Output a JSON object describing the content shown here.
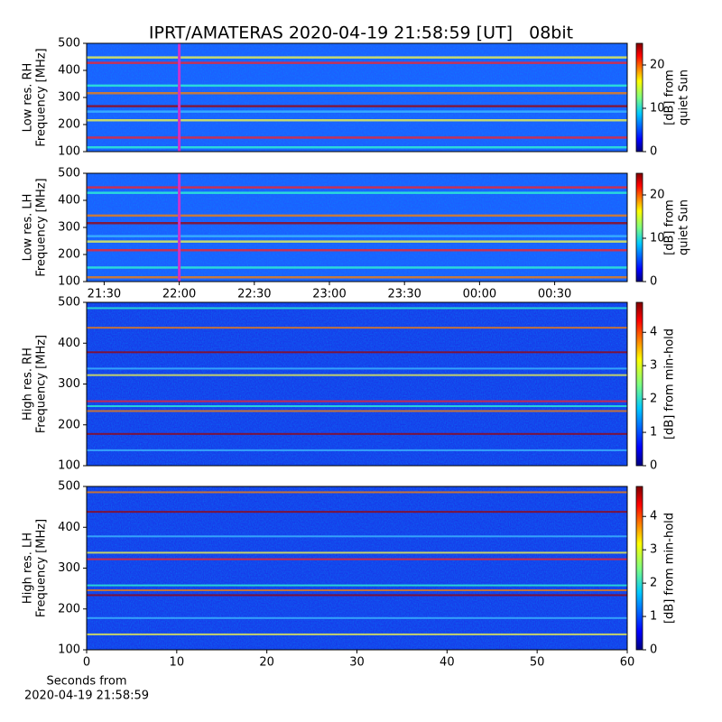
{
  "title": "IPRT/AMATERAS 2020-04-19 21:58:59 [UT]   08bit",
  "chart_data": [
    {
      "type": "heatmap",
      "ylabel": [
        "Low res. RH",
        "Frequency [MHz]"
      ],
      "ylim": [
        100,
        500
      ],
      "yticks": [
        100,
        200,
        300,
        400,
        500
      ],
      "xlim": [
        1283,
        1499
      ],
      "marker_x": 1320,
      "marker_color": "#cc33cc",
      "colorbar": {
        "label": [
          "[dB] from",
          "quiet Sun"
        ],
        "clim": [
          0,
          25
        ],
        "ticks": [
          0,
          10,
          20
        ]
      }
    },
    {
      "type": "heatmap",
      "ylabel": [
        "Low res. LH",
        "Frequency [MHz]"
      ],
      "ylim": [
        100,
        500
      ],
      "yticks": [
        100,
        200,
        300,
        400,
        500
      ],
      "xlim": [
        1283,
        1499
      ],
      "marker_x": 1320,
      "marker_color": "#cc33cc",
      "xticks": [
        {
          "value": 1290,
          "label": "21:30"
        },
        {
          "value": 1320,
          "label": "22:00"
        },
        {
          "value": 1350,
          "label": "22:30"
        },
        {
          "value": 1380,
          "label": "23:00"
        },
        {
          "value": 1410,
          "label": "23:30"
        },
        {
          "value": 1440,
          "label": "00:00"
        },
        {
          "value": 1470,
          "label": "00:30"
        }
      ],
      "colorbar": {
        "label": [
          "[dB] from",
          "quiet Sun"
        ],
        "clim": [
          0,
          25
        ],
        "ticks": [
          0,
          10,
          20
        ]
      }
    },
    {
      "type": "heatmap",
      "ylabel": [
        "High res. RH",
        "Frequency [MHz]"
      ],
      "ylim": [
        100,
        500
      ],
      "yticks": [
        100,
        200,
        300,
        400,
        500
      ],
      "xlim": [
        0,
        60
      ],
      "colorbar": {
        "label": [
          "[dB] from min-hold"
        ],
        "clim": [
          0,
          4.9
        ],
        "ticks": [
          0,
          1,
          2,
          3,
          4
        ]
      }
    },
    {
      "type": "heatmap",
      "ylabel": [
        "High res. LH",
        "Frequency [MHz]"
      ],
      "ylim": [
        100,
        500
      ],
      "yticks": [
        100,
        200,
        300,
        400,
        500
      ],
      "xlim": [
        0,
        60
      ],
      "xticks": [
        0,
        10,
        20,
        30,
        40,
        50,
        60
      ],
      "xlabel": [
        "Seconds from",
        "2020-04-19 21:58:59"
      ],
      "colorbar": {
        "label": [
          "[dB] from min-hold"
        ],
        "clim": [
          0,
          4.9
        ],
        "ticks": [
          0,
          1,
          2,
          3,
          4
        ]
      }
    }
  ]
}
